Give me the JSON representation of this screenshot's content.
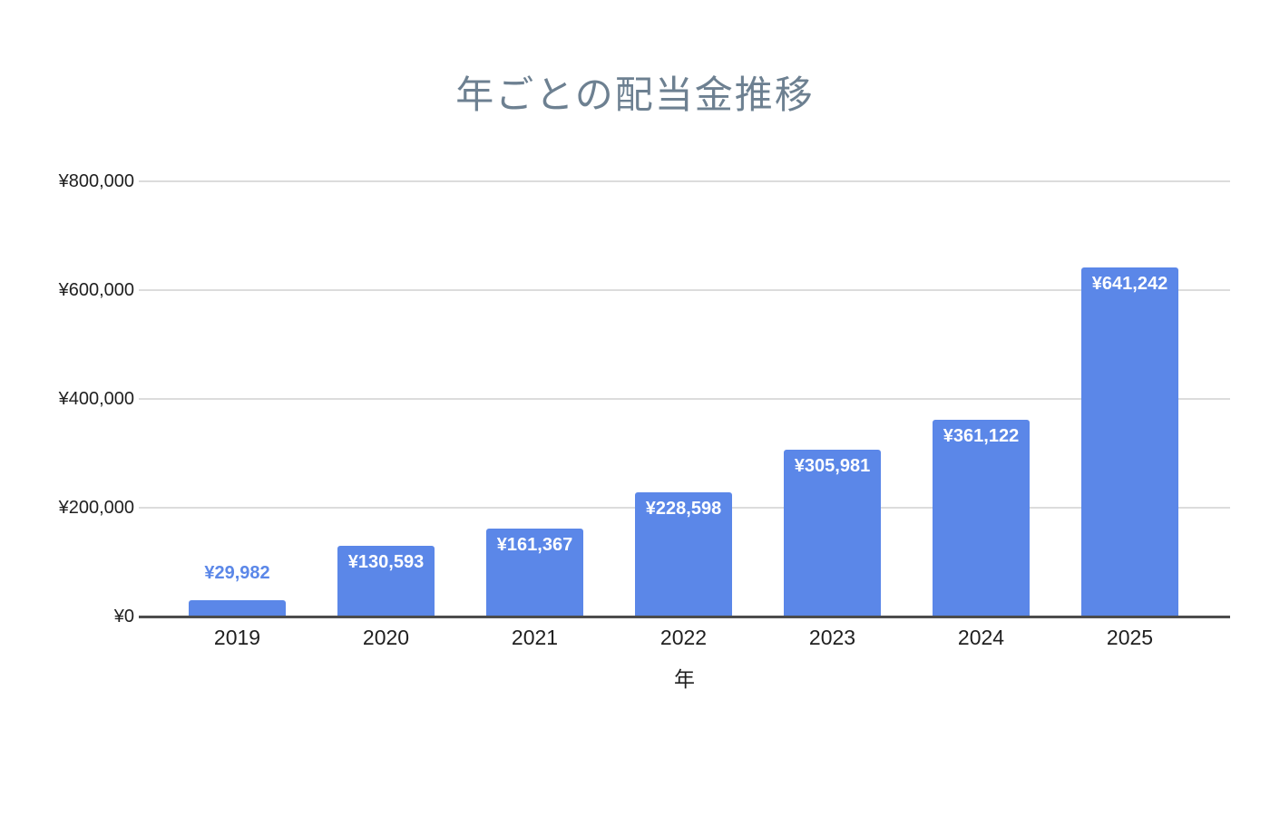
{
  "chart_data": {
    "type": "bar",
    "title": "年ごとの配当金推移",
    "xlabel": "年",
    "ylabel": "",
    "categories": [
      "2019",
      "2020",
      "2021",
      "2022",
      "2023",
      "2024",
      "2025"
    ],
    "values": [
      29982,
      130593,
      161367,
      228598,
      305981,
      361122,
      641242
    ],
    "value_labels": [
      "¥29,982",
      "¥130,593",
      "¥161,367",
      "¥228,598",
      "¥305,981",
      "¥361,122",
      "¥641,242"
    ],
    "ylim": [
      0,
      800000
    ],
    "y_ticks": [
      {
        "value": 0,
        "label": "¥0"
      },
      {
        "value": 200000,
        "label": "¥200,000"
      },
      {
        "value": 400000,
        "label": "¥400,000"
      },
      {
        "value": 600000,
        "label": "¥600,000"
      },
      {
        "value": 800000,
        "label": "¥800,000"
      }
    ],
    "grid": true,
    "legend": "none",
    "colors": {
      "bar": "#5b87e8",
      "title": "#6d8091",
      "label_inside": "#ffffff",
      "label_outside": "#5b87e8",
      "axis_text": "#1f1f1f",
      "gridline": "#dcdcdc",
      "baseline": "#4a4a4a"
    }
  }
}
